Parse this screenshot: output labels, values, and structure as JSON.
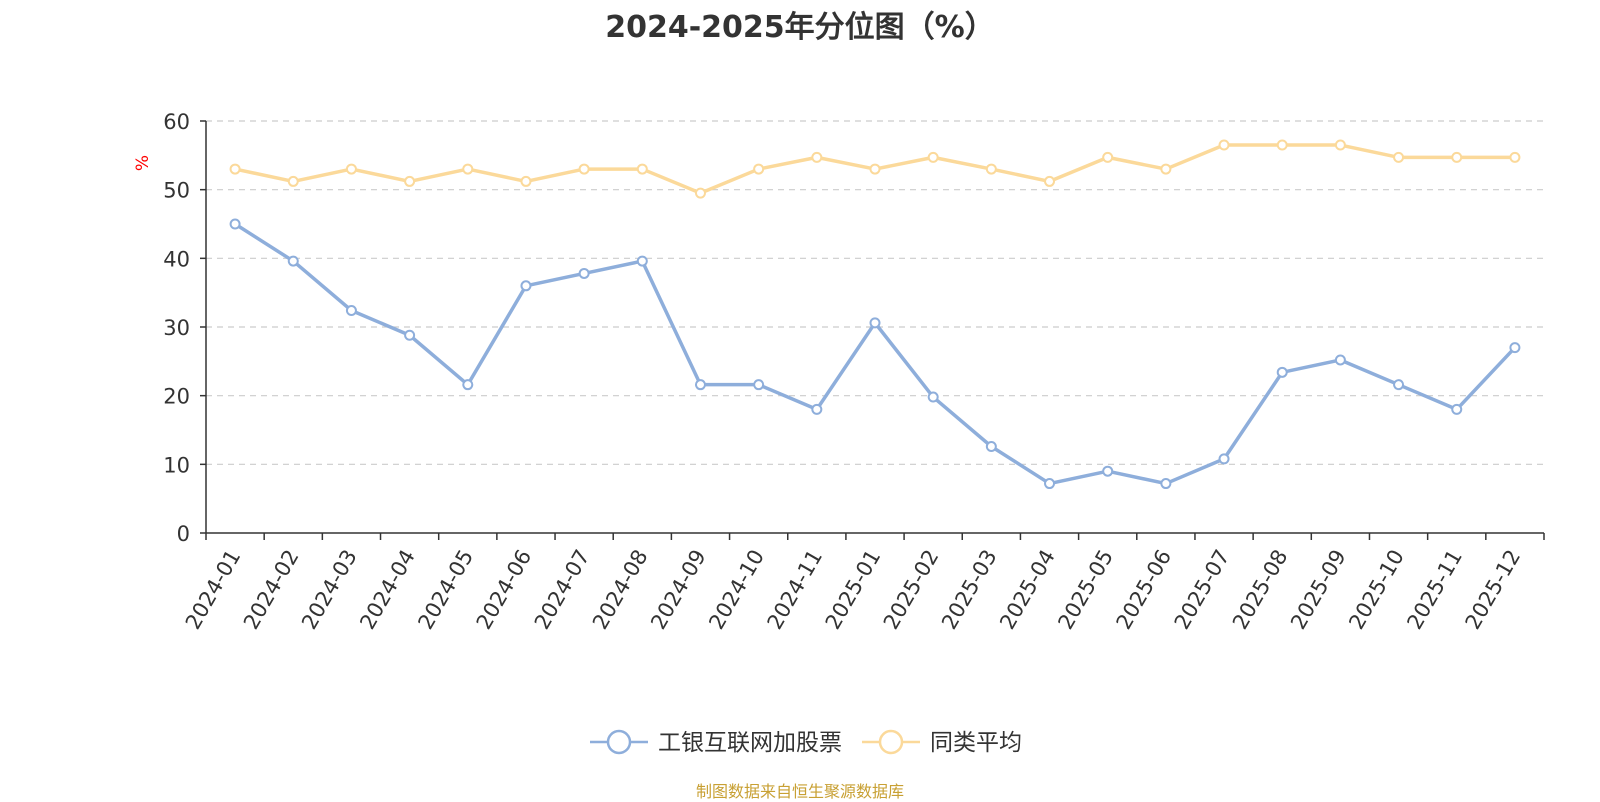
{
  "chart_data": {
    "type": "line",
    "title": "2024-2025年分位图（%）",
    "ylabel": "%",
    "xlabel": "",
    "ylim": [
      0,
      60
    ],
    "yticks": [
      0,
      10,
      20,
      30,
      40,
      50,
      60
    ],
    "grid": "horizontal dashed",
    "legend_position": "bottom-center",
    "categories": [
      "2024-01",
      "2024-02",
      "2024-03",
      "2024-04",
      "2024-05",
      "2024-06",
      "2024-07",
      "2024-08",
      "2024-09",
      "2024-10",
      "2024-11",
      "2025-01",
      "2025-02",
      "2025-03",
      "2025-04",
      "2025-05",
      "2025-06",
      "2025-07",
      "2025-08",
      "2025-09",
      "2025-10",
      "2025-11",
      "2025-12"
    ],
    "series": [
      {
        "name": "工银互联网加股票",
        "color": "#8eaedb",
        "values": [
          45.0,
          39.6,
          32.4,
          28.8,
          21.6,
          36.0,
          37.8,
          39.6,
          21.6,
          21.6,
          18.0,
          30.6,
          19.8,
          12.6,
          7.2,
          9.0,
          7.2,
          10.8,
          23.4,
          25.2,
          21.6,
          18.0,
          27.0
        ]
      },
      {
        "name": "同类平均",
        "color": "#fbd99a",
        "values": [
          53.0,
          51.2,
          53.0,
          51.2,
          53.0,
          51.2,
          53.0,
          53.0,
          49.5,
          53.0,
          54.7,
          53.0,
          54.7,
          53.0,
          51.2,
          54.7,
          53.0,
          56.5,
          56.5,
          56.5,
          54.7,
          54.7,
          54.7
        ]
      }
    ]
  },
  "source_text": "制图数据来自恒生聚源数据库"
}
